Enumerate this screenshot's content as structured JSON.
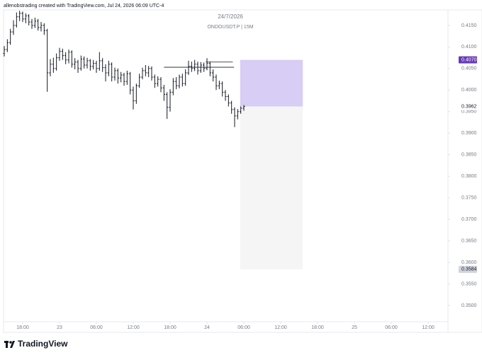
{
  "header": "allenobstrading created with TradingView.com, Jul 24, 2026 06:09 UTC-4",
  "brand": "TradingView",
  "chart_data": {
    "type": "ohlc",
    "title": "24/7/2026",
    "subtitle": "ONDOUSDT.P | 15M",
    "color": "#131722",
    "x": [
      -3,
      -2.5,
      -2,
      -1.5,
      -1,
      -0.5,
      0,
      0.5,
      1,
      1.5,
      2,
      2.5,
      3,
      3.5,
      4,
      4.5,
      5,
      5.5,
      6,
      6.5,
      7,
      7.5,
      8,
      8.5,
      9,
      9.5,
      10,
      10.5,
      11,
      11.5,
      12,
      12.5,
      13,
      13.5,
      14,
      14.5,
      15,
      15.5,
      16,
      16.5,
      17,
      17.5,
      18,
      18.5,
      19,
      19.5,
      20,
      20.5,
      21,
      21.5,
      22,
      22.5,
      23,
      23.5,
      24,
      24.5,
      25,
      25.5,
      26,
      26.5,
      27,
      27.5,
      28,
      28.5,
      29,
      29.5,
      30,
      30.5,
      31,
      31.5,
      32,
      32.5,
      33,
      33.5,
      34,
      34.5,
      35,
      35.5,
      36
    ],
    "open": [
      0.4085,
      0.4094,
      0.411,
      0.4135,
      0.415,
      0.417,
      0.4178,
      0.4165,
      0.4172,
      0.4158,
      0.415,
      0.416,
      0.4145,
      0.415,
      0.4138,
      0.404,
      0.406,
      0.405,
      0.4075,
      0.409,
      0.408,
      0.407,
      0.4088,
      0.406,
      0.4065,
      0.405,
      0.4072,
      0.4058,
      0.4068,
      0.4055,
      0.4062,
      0.405,
      0.4068,
      0.4052,
      0.404,
      0.406,
      0.403,
      0.4045,
      0.4028,
      0.4035,
      0.402,
      0.4038,
      0.4,
      0.3975,
      0.401,
      0.403,
      0.4045,
      0.404,
      0.405,
      0.403,
      0.4015,
      0.4025,
      0.4005,
      0.399,
      0.396,
      0.3995,
      0.402,
      0.401,
      0.403,
      0.4015,
      0.404,
      0.4055,
      0.405,
      0.406,
      0.4045,
      0.4058,
      0.405,
      0.4062,
      0.404,
      0.403,
      0.401,
      0.4015,
      0.3995,
      0.3985,
      0.397,
      0.3955,
      0.394,
      0.395,
      0.3958
    ],
    "high": [
      0.4102,
      0.4118,
      0.4142,
      0.4162,
      0.418,
      0.4184,
      0.4182,
      0.4178,
      0.4176,
      0.4165,
      0.4168,
      0.4165,
      0.4158,
      0.4155,
      0.4142,
      0.4072,
      0.4075,
      0.4085,
      0.4098,
      0.4096,
      0.4088,
      0.4094,
      0.4092,
      0.4074,
      0.407,
      0.408,
      0.4078,
      0.4075,
      0.4072,
      0.407,
      0.4068,
      0.4088,
      0.4074,
      0.406,
      0.4068,
      0.4064,
      0.4052,
      0.405,
      0.4042,
      0.404,
      0.4045,
      0.4042,
      0.4008,
      0.4015,
      0.4038,
      0.4052,
      0.4058,
      0.4056,
      0.4055,
      0.4036,
      0.4032,
      0.403,
      0.4012,
      0.3995,
      0.4002,
      0.4028,
      0.403,
      0.4036,
      0.4038,
      0.4048,
      0.4068,
      0.4066,
      0.407,
      0.4066,
      0.4065,
      0.4064,
      0.4074,
      0.4066,
      0.4048,
      0.4036,
      0.4022,
      0.402,
      0.4,
      0.399,
      0.3975,
      0.396,
      0.3956,
      0.3962,
      0.3965
    ],
    "low": [
      0.4078,
      0.4088,
      0.4105,
      0.4128,
      0.4145,
      0.416,
      0.4158,
      0.4155,
      0.415,
      0.4142,
      0.4144,
      0.4138,
      0.4136,
      0.4128,
      0.3996,
      0.4032,
      0.404,
      0.4045,
      0.4068,
      0.407,
      0.406,
      0.4062,
      0.4052,
      0.4048,
      0.404,
      0.4045,
      0.405,
      0.405,
      0.4045,
      0.4048,
      0.404,
      0.4045,
      0.4042,
      0.402,
      0.4032,
      0.402,
      0.4022,
      0.4015,
      0.4018,
      0.401,
      0.4012,
      0.399,
      0.3955,
      0.3968,
      0.4005,
      0.4025,
      0.4032,
      0.403,
      0.4022,
      0.4005,
      0.4008,
      0.3995,
      0.3975,
      0.3933,
      0.395,
      0.3988,
      0.4002,
      0.4004,
      0.4008,
      0.401,
      0.4035,
      0.4042,
      0.4044,
      0.4036,
      0.404,
      0.4042,
      0.4046,
      0.4032,
      0.402,
      0.4,
      0.4002,
      0.3985,
      0.3975,
      0.3962,
      0.3945,
      0.3914,
      0.3932,
      0.3945,
      0.3952
    ],
    "close": [
      0.4094,
      0.411,
      0.4135,
      0.415,
      0.417,
      0.4178,
      0.4165,
      0.4172,
      0.4158,
      0.415,
      0.416,
      0.4145,
      0.415,
      0.4138,
      0.404,
      0.406,
      0.405,
      0.4075,
      0.409,
      0.408,
      0.407,
      0.4088,
      0.406,
      0.4065,
      0.405,
      0.4072,
      0.4058,
      0.4068,
      0.4055,
      0.4062,
      0.405,
      0.4068,
      0.4052,
      0.404,
      0.406,
      0.403,
      0.4045,
      0.4028,
      0.4035,
      0.402,
      0.4038,
      0.4,
      0.3975,
      0.401,
      0.403,
      0.4045,
      0.404,
      0.405,
      0.403,
      0.4015,
      0.4025,
      0.4005,
      0.399,
      0.396,
      0.3995,
      0.402,
      0.401,
      0.403,
      0.4015,
      0.404,
      0.4055,
      0.405,
      0.406,
      0.4045,
      0.4058,
      0.405,
      0.4062,
      0.404,
      0.403,
      0.401,
      0.4015,
      0.3995,
      0.3985,
      0.397,
      0.3955,
      0.394,
      0.395,
      0.3958,
      0.3962
    ],
    "xlim": [
      -3.115,
      69.23
    ],
    "xticks": [
      {
        "value": 0,
        "label": "18:00"
      },
      {
        "value": 6,
        "label": "23"
      },
      {
        "value": 12,
        "label": "06:00"
      },
      {
        "value": 18,
        "label": "12:00"
      },
      {
        "value": 24,
        "label": "18:00"
      },
      {
        "value": 30,
        "label": "24"
      },
      {
        "value": 36,
        "label": "06:00"
      },
      {
        "value": 42,
        "label": "12:00"
      },
      {
        "value": 48,
        "label": "18:00"
      },
      {
        "value": 54,
        "label": "25"
      },
      {
        "value": 60,
        "label": "06:00"
      },
      {
        "value": 66,
        "label": "12:00"
      }
    ],
    "ylim": [
      0.34787,
      0.4186
    ],
    "yticks": [
      {
        "value": 0.35,
        "label": "0.3500"
      },
      {
        "value": 0.355,
        "label": "0.3550"
      },
      {
        "value": 0.36,
        "label": "0.3600"
      },
      {
        "value": 0.365,
        "label": "0.3650"
      },
      {
        "value": 0.37,
        "label": "0.3700"
      },
      {
        "value": 0.375,
        "label": "0.3750"
      },
      {
        "value": 0.38,
        "label": "0.3800"
      },
      {
        "value": 0.385,
        "label": "0.3850"
      },
      {
        "value": 0.39,
        "label": "0.3900"
      },
      {
        "value": 0.395,
        "label": "0.3950"
      },
      {
        "value": 0.4,
        "label": "0.4000"
      },
      {
        "value": 0.405,
        "label": "0.4050"
      },
      {
        "value": 0.41,
        "label": "0.4100"
      },
      {
        "value": 0.415,
        "label": "0.4150"
      }
    ],
    "grid": false,
    "levels": [
      {
        "value": 0.4053,
        "x": [
          23,
          34.4
        ]
      },
      {
        "value": 0.4065,
        "x": [
          29.8,
          34.2
        ]
      }
    ],
    "position": {
      "x": [
        35.4,
        45.6
      ],
      "entry": 0.3962,
      "target": {
        "value": 0.407,
        "label": "0.4070",
        "color": "#d1c4f3",
        "tag_color": "#673ab7"
      },
      "stop": {
        "value": 0.3584,
        "label": "0.3584",
        "color": "#f5f5f5",
        "tag_color": "#d1d4dc"
      }
    }
  }
}
